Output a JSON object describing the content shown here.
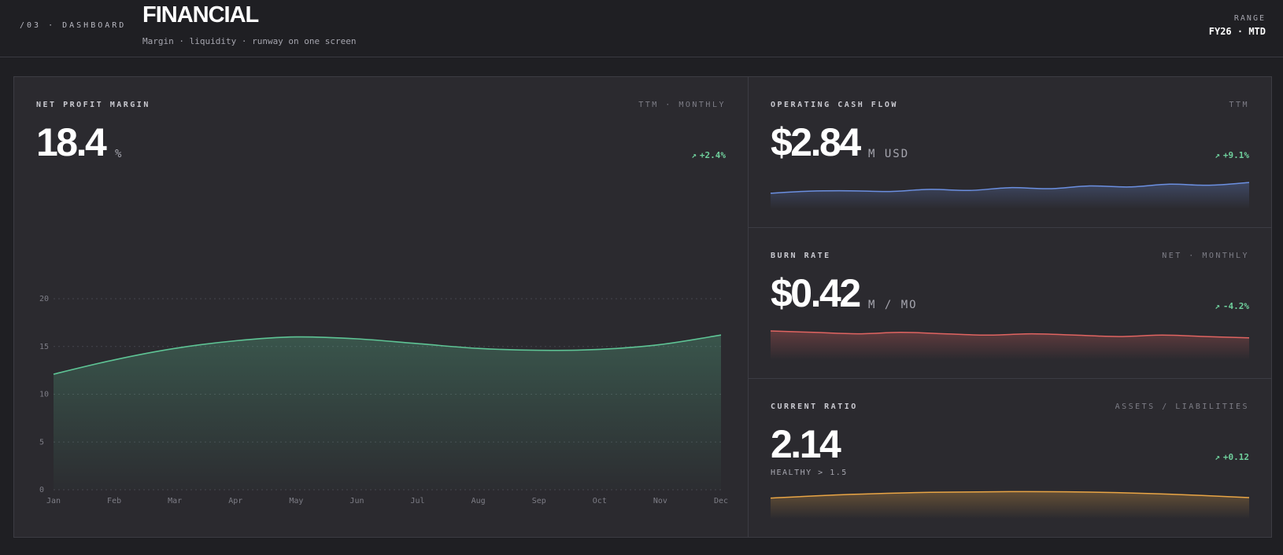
{
  "header": {
    "eyebrow": "/03 · DASHBOARD",
    "title": "FINANCIAL",
    "subtitle": "Margin · liquidity · runway on one screen",
    "range_label": "RANGE",
    "range_value": "FY26 · MTD"
  },
  "colors": {
    "background": "#1f1f23",
    "panel": "#2b2a2f",
    "positive": "#6fcf9c",
    "margin_line": "#5ec495",
    "cashflow_line": "#6b8fe0",
    "burn_line": "#e06461",
    "ratio_line": "#e9a545"
  },
  "panels": {
    "margin": {
      "label": "NET PROFIT MARGIN",
      "meta": "TTM · MONTHLY",
      "value": "18.4",
      "unit": "%",
      "delta": "+2.4%",
      "delta_icon": "arrow-up-right-icon"
    },
    "cashflow": {
      "label": "OPERATING CASH FLOW",
      "meta": "TTM",
      "value": "$2.84",
      "unit": "M USD",
      "delta": "+9.1%",
      "delta_icon": "arrow-up-right-icon"
    },
    "burn": {
      "label": "BURN RATE",
      "meta": "NET · MONTHLY",
      "value": "$0.42",
      "unit": "M / MO",
      "delta": "-4.2%",
      "delta_icon": "arrow-up-right-icon"
    },
    "ratio": {
      "label": "CURRENT RATIO",
      "meta": "ASSETS / LIABILITIES",
      "value": "2.14",
      "note": "HEALTHY > 1.5",
      "delta": "+0.12",
      "delta_icon": "arrow-up-right-icon"
    }
  },
  "chart_data": [
    {
      "type": "area",
      "categories": [
        "Jan",
        "Feb",
        "Mar",
        "Apr",
        "May",
        "Jun",
        "Jul",
        "Aug",
        "Sep",
        "Oct",
        "Nov",
        "Dec"
      ],
      "values": [
        12.1,
        13.6,
        14.8,
        15.6,
        16.0,
        15.8,
        15.3,
        14.8,
        14.6,
        14.7,
        15.2,
        16.2
      ],
      "ylim": [
        0,
        20
      ],
      "yticks": [
        0,
        5,
        10,
        15,
        20
      ],
      "grid": true,
      "color": "#5ec495"
    },
    {
      "type": "area",
      "values": [
        2.36,
        2.42,
        2.43,
        2.41,
        2.47,
        2.44,
        2.52,
        2.49,
        2.57,
        2.54,
        2.62,
        2.59,
        2.67
      ],
      "ylim": [
        1.9,
        2.9
      ],
      "color": "#6b8fe0"
    },
    {
      "type": "area",
      "values": [
        0.62,
        0.6,
        0.58,
        0.6,
        0.58,
        0.56,
        0.58,
        0.56,
        0.54,
        0.56,
        0.54,
        0.52
      ],
      "ylim": [
        0.2,
        0.7
      ],
      "color": "#e06461"
    },
    {
      "type": "area",
      "values": [
        1.9,
        2.06,
        2.15,
        2.18,
        2.16,
        2.07,
        1.92
      ],
      "ylim": [
        1.0,
        2.5
      ],
      "color": "#e9a545"
    }
  ]
}
